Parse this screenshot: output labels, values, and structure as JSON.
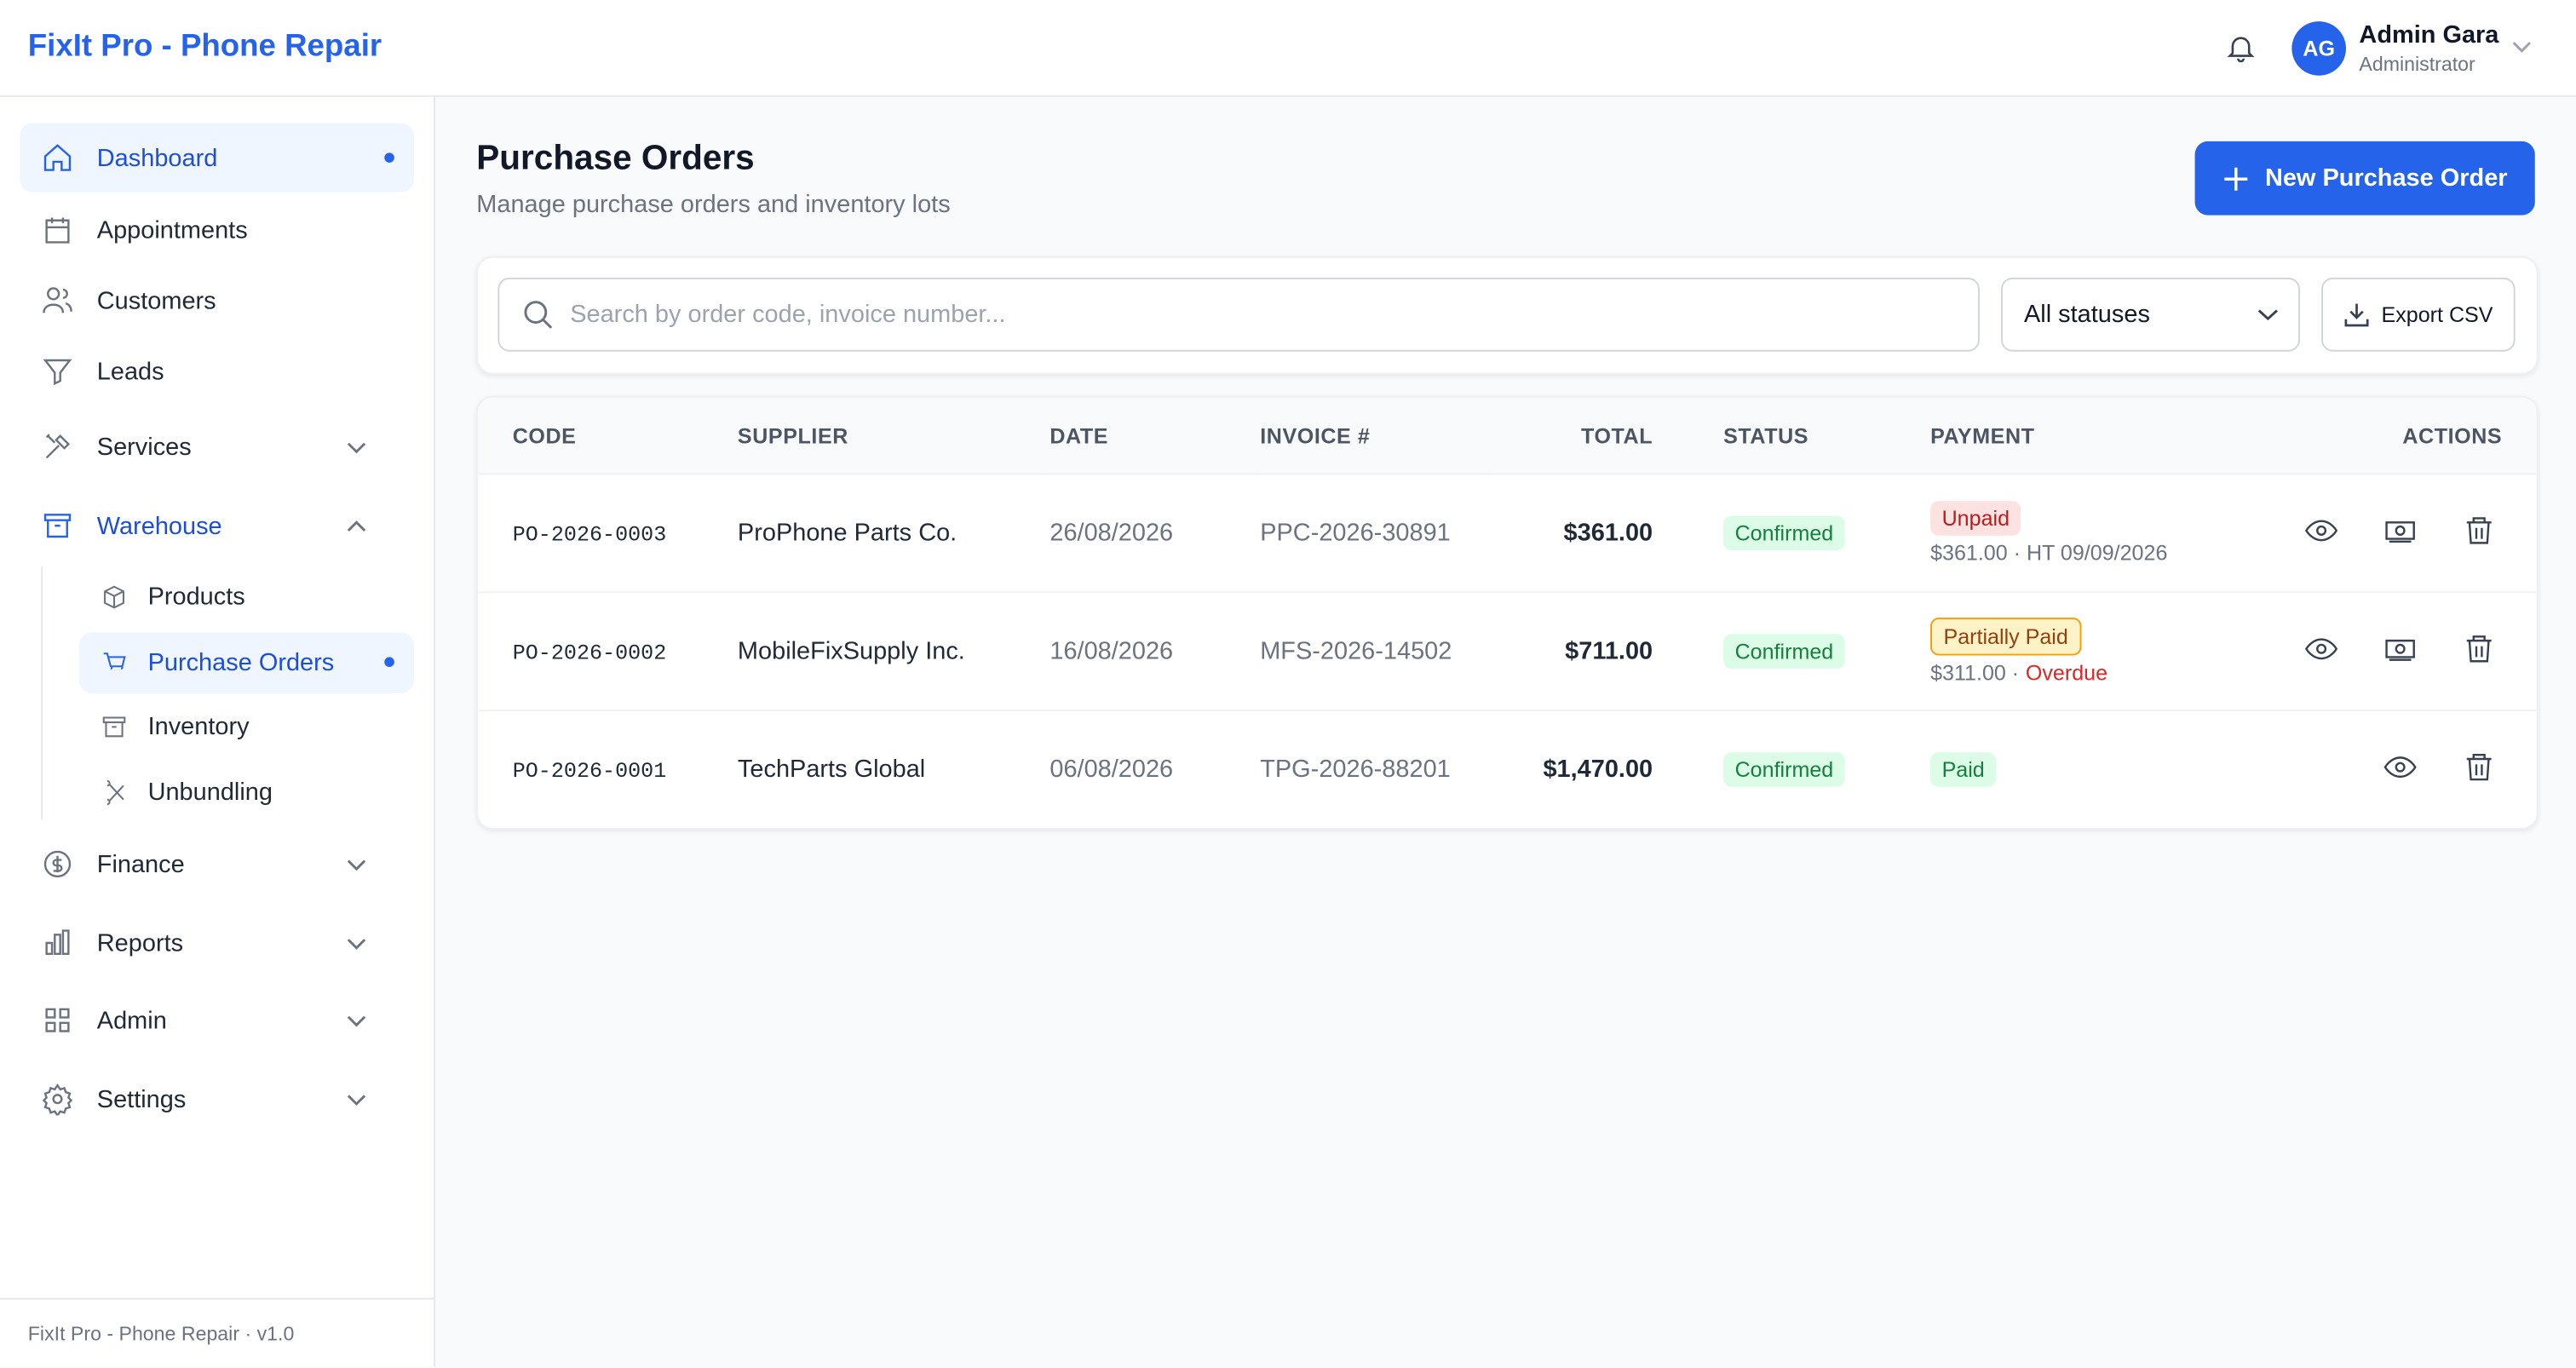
{
  "header": {
    "brand": "FixIt Pro - Phone Repair",
    "user_initials": "AG",
    "user_name": "Admin Gara",
    "user_role": "Administrator"
  },
  "sidebar": {
    "items": [
      "Dashboard",
      "Appointments",
      "Customers",
      "Leads",
      "Services",
      "Warehouse",
      "Finance",
      "Reports",
      "Admin",
      "Settings"
    ],
    "warehouse_items": [
      "Products",
      "Purchase Orders",
      "Inventory",
      "Unbundling"
    ],
    "footer": "FixIt Pro - Phone Repair · v1.0"
  },
  "page": {
    "title": "Purchase Orders",
    "subtitle": "Manage purchase orders and inventory lots",
    "new_button": "New Purchase Order"
  },
  "filters": {
    "search_placeholder": "Search by order code, invoice number...",
    "status_select": "All statuses",
    "export": "Export CSV"
  },
  "table": {
    "columns": [
      "CODE",
      "SUPPLIER",
      "DATE",
      "INVOICE #",
      "TOTAL",
      "STATUS",
      "PAYMENT",
      "ACTIONS"
    ],
    "rows": [
      {
        "code": "PO-2026-0003",
        "supplier": "ProPhone Parts Co.",
        "date": "26/08/2026",
        "invoice": "PPC-2026-30891",
        "total": "$361.00",
        "status": "Confirmed",
        "payment": "Unpaid",
        "detail": "$361.00 · HT 09/09/2026"
      },
      {
        "code": "PO-2026-0002",
        "supplier": "MobileFixSupply Inc.",
        "date": "16/08/2026",
        "invoice": "MFS-2026-14502",
        "total": "$711.00",
        "status": "Confirmed",
        "payment": "Partially Paid",
        "detail": "$311.00 ·",
        "overdue": "Overdue"
      },
      {
        "code": "PO-2026-0001",
        "supplier": "TechParts Global",
        "date": "06/08/2026",
        "invoice": "TPG-2026-88201",
        "total": "$1,470.00",
        "status": "Confirmed",
        "payment": "Paid"
      }
    ]
  }
}
